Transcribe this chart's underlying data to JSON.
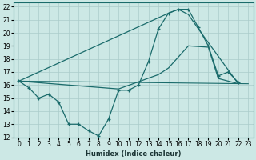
{
  "xlabel": "Humidex (Indice chaleur)",
  "bg_color": "#cce8e5",
  "grid_color": "#aaccca",
  "line_color": "#1a6b6b",
  "xlim": [
    -0.5,
    23.5
  ],
  "ylim": [
    12,
    22.3
  ],
  "xticks": [
    0,
    1,
    2,
    3,
    4,
    5,
    6,
    7,
    8,
    9,
    10,
    11,
    12,
    13,
    14,
    15,
    16,
    17,
    18,
    19,
    20,
    21,
    22,
    23
  ],
  "yticks": [
    12,
    13,
    14,
    15,
    16,
    17,
    18,
    19,
    20,
    21,
    22
  ],
  "curve_x": [
    0,
    1,
    2,
    3,
    4,
    5,
    6,
    7,
    8,
    9,
    10,
    11,
    12,
    13,
    14,
    15,
    16,
    17,
    18,
    19,
    20,
    21,
    22
  ],
  "curve_y": [
    16.3,
    15.8,
    15.0,
    15.3,
    14.7,
    13.0,
    13.0,
    12.5,
    12.1,
    13.4,
    15.6,
    15.6,
    16.0,
    17.8,
    20.3,
    21.5,
    21.8,
    21.8,
    20.4,
    19.0,
    16.7,
    17.0,
    16.2
  ],
  "upper_x": [
    0,
    15,
    16,
    17,
    18,
    22
  ],
  "upper_y": [
    16.3,
    21.5,
    21.8,
    21.4,
    20.3,
    16.1
  ],
  "lower_x": [
    0,
    10,
    14,
    15,
    17,
    19,
    20,
    22
  ],
  "lower_y": [
    16.3,
    15.7,
    16.8,
    17.3,
    19.0,
    18.9,
    16.5,
    16.1
  ]
}
